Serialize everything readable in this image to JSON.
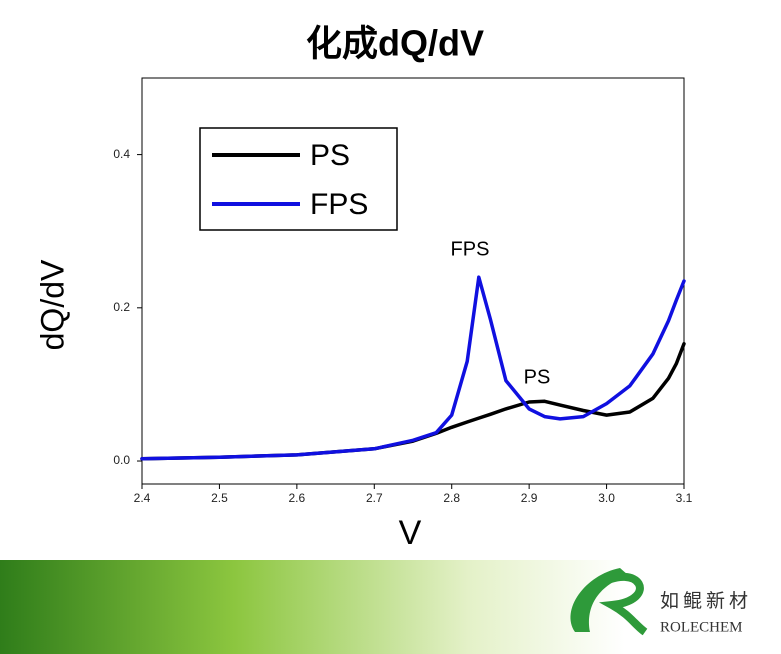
{
  "chart_data": {
    "type": "line",
    "title": "化成dQ/dV",
    "x_label": "V",
    "y_label": "dQ/dV",
    "x": [
      2.4,
      2.5,
      2.6,
      2.7,
      2.75,
      2.78,
      2.8,
      2.82,
      2.835,
      2.85,
      2.87,
      2.9,
      2.92,
      2.94,
      2.97,
      3.0,
      3.03,
      3.06,
      3.08,
      3.09,
      3.1
    ],
    "series": [
      {
        "name": "PS",
        "color": "#000000",
        "values": [
          0.003,
          0.005,
          0.008,
          0.016,
          0.026,
          0.036,
          0.044,
          0.051,
          0.056,
          0.061,
          0.068,
          0.077,
          0.078,
          0.073,
          0.066,
          0.06,
          0.064,
          0.082,
          0.108,
          0.127,
          0.153
        ]
      },
      {
        "name": "FPS",
        "color": "#1010e0",
        "values": [
          0.003,
          0.005,
          0.008,
          0.016,
          0.027,
          0.037,
          0.06,
          0.13,
          0.24,
          0.185,
          0.105,
          0.068,
          0.058,
          0.055,
          0.058,
          0.075,
          0.098,
          0.14,
          0.183,
          0.21,
          0.235
        ]
      }
    ],
    "annotations": [
      "FPS",
      "PS"
    ],
    "xlim": [
      2.4,
      3.1
    ],
    "xticks": [
      2.4,
      2.5,
      2.6,
      2.7,
      2.8,
      2.9,
      {
        "value": 3,
        "label": "3.0"
      },
      3.1
    ],
    "ylim": [
      -0.03,
      0.5
    ],
    "yticks": [
      {
        "value": 0,
        "label": "0.0"
      },
      0.2,
      0.4
    ],
    "legend": "upper left",
    "grid": false
  },
  "logo": {
    "name": "如鲲新材",
    "english": "ROLECHEM"
  }
}
